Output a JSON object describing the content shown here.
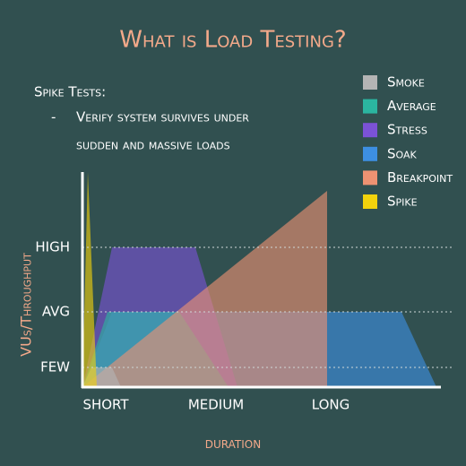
{
  "title": "What is Load Testing?",
  "description": {
    "heading": "Spike Tests:",
    "bullet": "-",
    "lines": [
      "Verify system survives under",
      "sudden and massive loads"
    ]
  },
  "legend": [
    {
      "label": "Smoke",
      "color": "#b4b4b4"
    },
    {
      "label": "Average",
      "color": "#2bb5a0"
    },
    {
      "label": "Stress",
      "color": "#7b52d6"
    },
    {
      "label": "Soak",
      "color": "#3d8fe2"
    },
    {
      "label": "Breakpoint",
      "color": "#ee9272"
    },
    {
      "label": "Spike",
      "color": "#f2d20c"
    }
  ],
  "y_axis": {
    "label": "VUs/Throughput",
    "levels": [
      "HIGH",
      "AVG",
      "FEW"
    ]
  },
  "x_axis": {
    "label": "duration",
    "levels": [
      "SHORT",
      "MEDIUM",
      "LONG"
    ]
  }
}
